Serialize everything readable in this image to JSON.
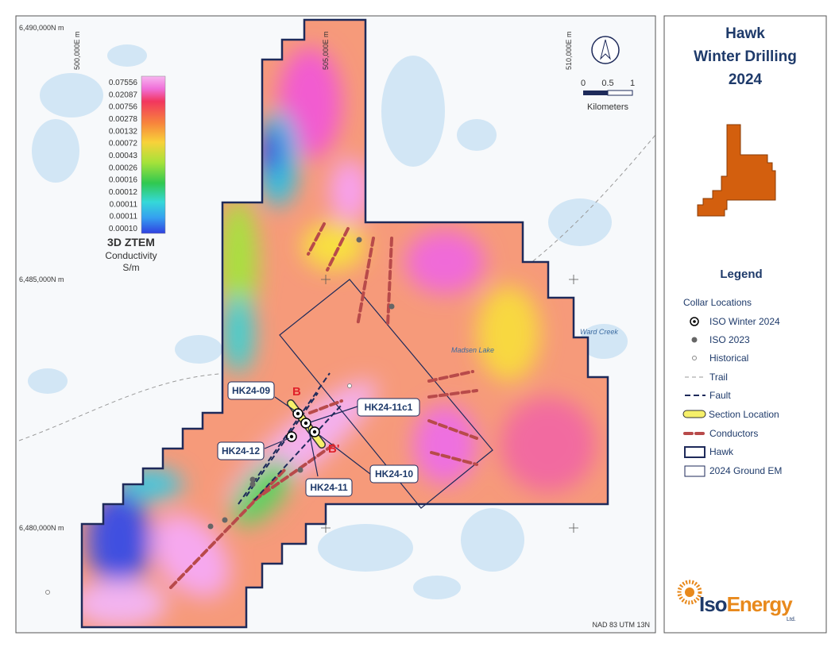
{
  "map": {
    "northings": [
      "6,490,000N m",
      "6,485,000N m",
      "6,480,000N m"
    ],
    "eastings": [
      "500,000E m",
      "505,000E m",
      "510,000E m"
    ],
    "scale": {
      "ticks": [
        "0",
        "0.5",
        "1"
      ],
      "unit": "Kilometers"
    },
    "colorbar": {
      "labels": [
        "0.07556",
        "0.02087",
        "0.00756",
        "0.00278",
        "0.00132",
        "0.00072",
        "0.00043",
        "0.00026",
        "0.00016",
        "0.00012",
        "0.00011",
        "0.00011",
        "0.00010"
      ],
      "title": "3D ZTEM",
      "subtitle": "Conductivity",
      "unit": "S/m"
    },
    "places": [
      "Ward Creek",
      "Madsen Lake"
    ],
    "drillholes": [
      "HK24-09",
      "HK24-11c1",
      "HK24-12",
      "HK24-10",
      "HK24-11"
    ],
    "section": [
      "B",
      "B'"
    ],
    "datum": "NAD 83 UTM 13N"
  },
  "panel": {
    "title": [
      "Hawk",
      "Winter Drilling",
      "2024"
    ],
    "legend": {
      "title": "Legend",
      "group": "Collar Locations",
      "items": [
        "ISO Winter 2024",
        "ISO 2023",
        "Historical",
        "Trail",
        "Fault",
        "Section Location",
        "Conductors",
        "Hawk",
        "2024 Ground EM"
      ]
    },
    "logo": {
      "prefix": "Iso",
      "name": "Energy",
      "suffix": "Ltd."
    }
  }
}
